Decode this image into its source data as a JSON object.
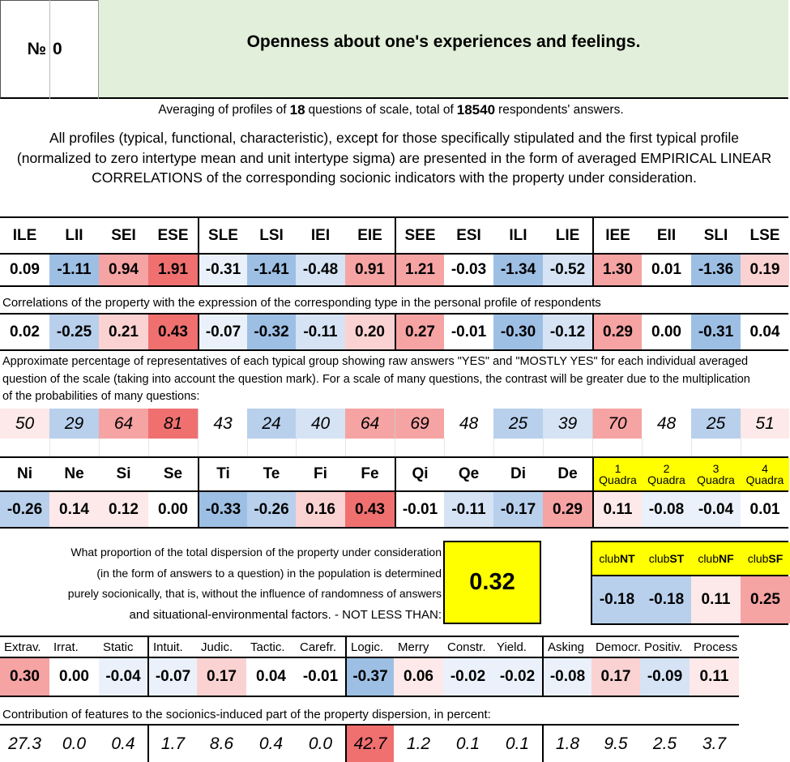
{
  "header": {
    "number_label": "№",
    "number_value": "0",
    "title": "Openness about one's experiences and feelings."
  },
  "averaging": {
    "prefix": "Averaging of profiles of",
    "questions": "18",
    "middle": "questions of scale, total of",
    "respondents": "18540",
    "suffix": "respondents' answers."
  },
  "description": "All profiles (typical, functional, characteristic), except for those specifically stipulated and the first typical profile (normalized to zero intertype mean and unit intertype sigma) are presented in the form of averaged EMPIRICAL LINEAR CORRELATIONS of the corresponding socionic indicators with the property under consideration.",
  "types": {
    "labels": [
      "ILE",
      "LII",
      "SEI",
      "ESE",
      "SLE",
      "LSI",
      "IEI",
      "EIE",
      "SEE",
      "ESI",
      "ILI",
      "LIE",
      "IEE",
      "EII",
      "SLI",
      "LSE"
    ],
    "normalized": [
      "0.09",
      "-1.11",
      "0.94",
      "1.91",
      "-0.31",
      "-1.41",
      "-0.48",
      "0.91",
      "1.21",
      "-0.03",
      "-1.34",
      "-0.52",
      "1.30",
      "0.01",
      "-1.36",
      "0.19"
    ],
    "correlations_note": "Correlations of the property with the expression of the corresponding type in the personal profile of respondents",
    "correlations": [
      "0.02",
      "-0.25",
      "0.21",
      "0.43",
      "-0.07",
      "-0.32",
      "-0.11",
      "0.20",
      "0.27",
      "-0.01",
      "-0.30",
      "-0.12",
      "0.29",
      "0.00",
      "-0.31",
      "0.04"
    ],
    "percent_note": "Approximate percentage of representatives of each typical group showing raw answers \"YES\" and \"MOSTLY YES\" for each individual averaged question of the scale (taking into account the question mark). For a scale of many questions, the contrast will be greater due to the multiplication of the probabilities of many questions:",
    "percentages": [
      "50",
      "29",
      "64",
      "81",
      "43",
      "24",
      "40",
      "64",
      "69",
      "48",
      "25",
      "39",
      "70",
      "48",
      "25",
      "51"
    ]
  },
  "functions": {
    "labels": [
      "Ni",
      "Ne",
      "Si",
      "Se",
      "Ti",
      "Te",
      "Fi",
      "Fe",
      "Qi",
      "Qe",
      "Di",
      "De"
    ],
    "values": [
      "-0.26",
      "0.14",
      "0.12",
      "0.00",
      "-0.33",
      "-0.26",
      "0.16",
      "0.43",
      "-0.01",
      "-0.11",
      "-0.17",
      "0.29"
    ],
    "quadra_labels": [
      {
        "num": "1",
        "word": "Quadra"
      },
      {
        "num": "2",
        "word": "Quadra"
      },
      {
        "num": "3",
        "word": "Quadra"
      },
      {
        "num": "4",
        "word": "Quadra"
      }
    ],
    "quadra_values": [
      "0.11",
      "-0.08",
      "-0.04",
      "0.01"
    ]
  },
  "dispersion": {
    "lines": [
      "What proportion of the total dispersion of the property under consideration",
      "(in the form of answers to a question) in the population is determined",
      "purely socionically, that is, without the influence of randomness of answers",
      "and situational-environmental factors. - NOT LESS THAN:"
    ],
    "value": "0.32"
  },
  "clubs": {
    "labels": [
      {
        "pre": "club",
        "bold": "NT"
      },
      {
        "pre": "club",
        "bold": "ST"
      },
      {
        "pre": "club",
        "bold": "NF"
      },
      {
        "pre": "club",
        "bold": "SF"
      }
    ],
    "values": [
      "-0.18",
      "-0.18",
      "0.11",
      "0.25"
    ]
  },
  "traits": {
    "labels": [
      "Extrav.",
      "Irrat.",
      "Static",
      "Intuit.",
      "Judic.",
      "Tactic.",
      "Carefr.",
      "Logic.",
      "Merry",
      "Constr.",
      "Yield.",
      "Asking",
      "Democr.",
      "Positiv.",
      "Process"
    ],
    "values": [
      "0.30",
      "0.00",
      "-0.04",
      "-0.07",
      "0.17",
      "0.04",
      "-0.01",
      "-0.37",
      "0.06",
      "-0.02",
      "-0.02",
      "-0.08",
      "0.17",
      "-0.09",
      "0.11"
    ],
    "contribution_note": "Contribution of features to the socionics-induced part of the property dispersion, in percent:",
    "contributions": [
      "27.3",
      "0.0",
      "0.4",
      "1.7",
      "8.6",
      "0.4",
      "0.0",
      "42.7",
      "1.2",
      "0.1",
      "0.1",
      "1.8",
      "9.5",
      "2.5",
      "3.7"
    ]
  },
  "colors": {
    "strong_red": "#f07070",
    "red": "#f6a3a3",
    "light_red": "#fbd2d2",
    "faint_red": "#fde9e9",
    "strong_blue": "#9dbfe4",
    "blue": "#b8d0ec",
    "light_blue": "#d5e3f4",
    "faint_blue": "#ebf1fa",
    "title_green": "#e2efda",
    "highlight_yellow": "#ffff00"
  }
}
